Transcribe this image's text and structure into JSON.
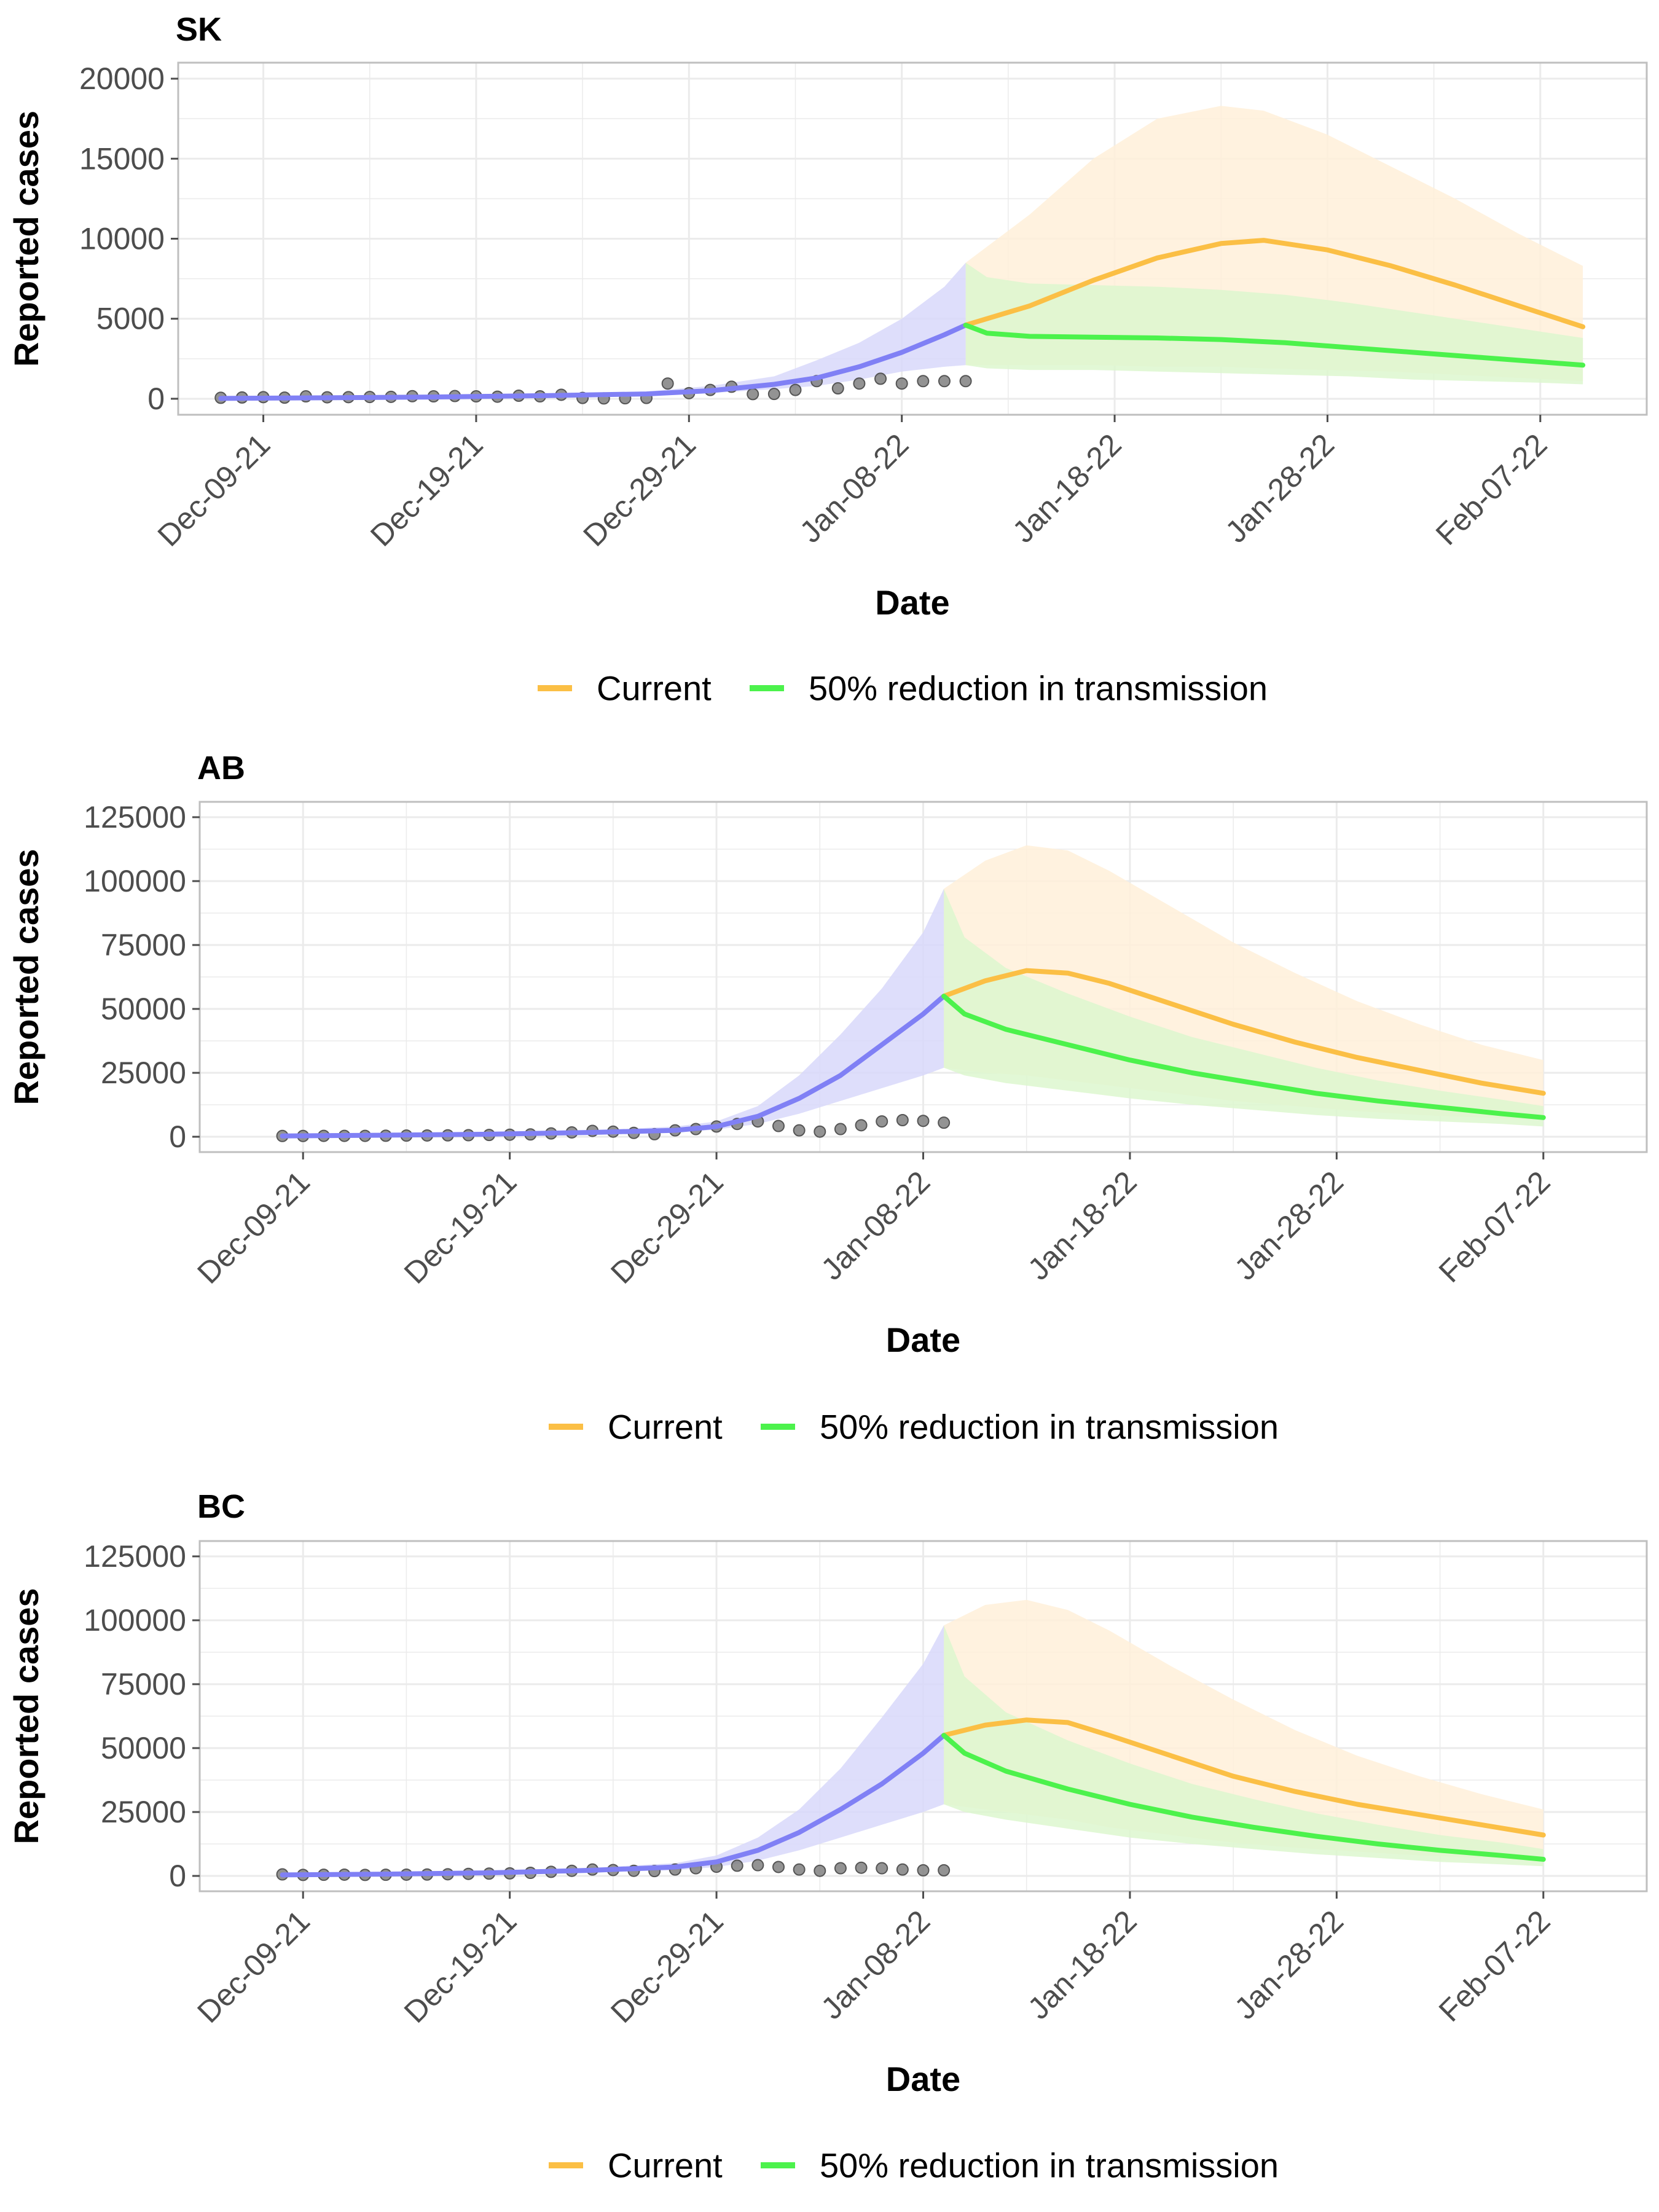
{
  "colors": {
    "current": "#FBBF45",
    "reduction": "#4CF24C",
    "fit": "#8080F5",
    "fit_band": "#D8D8FA",
    "current_band": "#FFF0D9",
    "reduction_band": "#DDF7CF",
    "points": "#808080",
    "grid": "#EBEBEB"
  },
  "chart_data": [
    {
      "type": "line",
      "title": "SK",
      "xlabel": "Date",
      "ylabel": "Reported cases",
      "xlim": [
        "2021-12-05",
        "2022-02-12"
      ],
      "ylim": [
        -1000,
        21000
      ],
      "x_ticks": [
        "Dec-09-21",
        "Dec-19-21",
        "Dec-29-21",
        "Jan-08-22",
        "Jan-18-22",
        "Jan-28-22",
        "Feb-07-22"
      ],
      "y_ticks": [
        "0",
        "5000",
        "10000",
        "15000",
        "20000"
      ],
      "legend": [
        "Current",
        "50% reduction in transmission"
      ],
      "legend_position": "bottom",
      "observed": {
        "x": [
          "2021-12-07",
          "2021-12-08",
          "2021-12-09",
          "2021-12-10",
          "2021-12-11",
          "2021-12-12",
          "2021-12-13",
          "2021-12-14",
          "2021-12-15",
          "2021-12-16",
          "2021-12-17",
          "2021-12-18",
          "2021-12-19",
          "2021-12-20",
          "2021-12-21",
          "2021-12-22",
          "2021-12-23",
          "2021-12-24",
          "2021-12-25",
          "2021-12-26",
          "2021-12-27",
          "2021-12-28",
          "2021-12-29",
          "2021-12-30",
          "2021-12-31",
          "2022-01-01",
          "2022-01-02",
          "2022-01-03",
          "2022-01-04",
          "2022-01-05",
          "2022-01-06",
          "2022-01-07",
          "2022-01-08",
          "2022-01-09",
          "2022-01-10",
          "2022-01-11"
        ],
        "y": [
          60,
          80,
          100,
          70,
          150,
          90,
          100,
          110,
          120,
          160,
          150,
          170,
          150,
          130,
          190,
          150,
          250,
          50,
          20,
          30,
          50,
          950,
          350,
          550,
          750,
          290,
          300,
          550,
          1100,
          650,
          950,
          1250,
          950,
          1100,
          1100,
          1100
        ]
      },
      "fitted": {
        "x": [
          "2021-12-07",
          "2021-12-12",
          "2021-12-17",
          "2021-12-22",
          "2021-12-27",
          "2021-12-30",
          "2022-01-02",
          "2022-01-04",
          "2022-01-06",
          "2022-01-08",
          "2022-01-10",
          "2022-01-11"
        ],
        "y": [
          20,
          60,
          110,
          190,
          300,
          500,
          900,
          1300,
          2000,
          2900,
          4000,
          4600
        ],
        "lower": [
          10,
          40,
          80,
          130,
          200,
          350,
          600,
          800,
          1200,
          1700,
          2000,
          2100
        ],
        "upper": [
          60,
          100,
          170,
          300,
          450,
          800,
          1400,
          2400,
          3500,
          5000,
          7000,
          8500
        ]
      },
      "series": [
        {
          "name": "Current",
          "x": [
            "2022-01-11",
            "2022-01-14",
            "2022-01-17",
            "2022-01-20",
            "2022-01-23",
            "2022-01-25",
            "2022-01-28",
            "2022-01-31",
            "2022-02-03",
            "2022-02-06",
            "2022-02-09"
          ],
          "values": [
            4600,
            5800,
            7400,
            8800,
            9700,
            9900,
            9300,
            8300,
            7100,
            5800,
            4500
          ],
          "lower": [
            2100,
            2100,
            2100,
            2000,
            2000,
            1900,
            1800,
            1700,
            1500,
            1300,
            1100
          ],
          "upper": [
            8500,
            11500,
            15000,
            17500,
            18300,
            18000,
            16500,
            14500,
            12500,
            10300,
            8300
          ]
        },
        {
          "name": "50% reduction in transmission",
          "x": [
            "2022-01-11",
            "2022-01-12",
            "2022-01-14",
            "2022-01-17",
            "2022-01-20",
            "2022-01-23",
            "2022-01-26",
            "2022-01-29",
            "2022-02-01",
            "2022-02-04",
            "2022-02-07",
            "2022-02-09"
          ],
          "values": [
            4600,
            4100,
            3900,
            3850,
            3800,
            3700,
            3500,
            3200,
            2900,
            2600,
            2300,
            2100
          ],
          "lower": [
            2100,
            1900,
            1800,
            1800,
            1700,
            1600,
            1500,
            1400,
            1200,
            1100,
            1000,
            900
          ],
          "upper": [
            8500,
            7600,
            7200,
            7100,
            7000,
            6800,
            6500,
            6000,
            5400,
            4800,
            4200,
            3800
          ]
        }
      ]
    },
    {
      "type": "line",
      "title": "AB",
      "xlabel": "Date",
      "ylabel": "Reported cases",
      "xlim": [
        "2021-12-04",
        "2022-02-12"
      ],
      "ylim": [
        -6000,
        131000
      ],
      "x_ticks": [
        "Dec-09-21",
        "Dec-19-21",
        "Dec-29-21",
        "Jan-08-22",
        "Jan-18-22",
        "Jan-28-22",
        "Feb-07-22"
      ],
      "y_ticks": [
        "0",
        "25000",
        "50000",
        "75000",
        "100000",
        "125000"
      ],
      "legend": [
        "Current",
        "50% reduction in transmission"
      ],
      "legend_position": "bottom",
      "observed": {
        "x": [
          "2021-12-08",
          "2021-12-09",
          "2021-12-10",
          "2021-12-11",
          "2021-12-12",
          "2021-12-13",
          "2021-12-14",
          "2021-12-15",
          "2021-12-16",
          "2021-12-17",
          "2021-12-18",
          "2021-12-19",
          "2021-12-20",
          "2021-12-21",
          "2021-12-22",
          "2021-12-23",
          "2021-12-24",
          "2021-12-25",
          "2021-12-26",
          "2021-12-27",
          "2021-12-28",
          "2021-12-29",
          "2021-12-30",
          "2021-12-31",
          "2022-01-01",
          "2022-01-02",
          "2022-01-03",
          "2022-01-04",
          "2022-01-05",
          "2022-01-06",
          "2022-01-07",
          "2022-01-08",
          "2022-01-09"
        ],
        "y": [
          300,
          300,
          350,
          350,
          350,
          400,
          450,
          500,
          550,
          600,
          700,
          800,
          900,
          1300,
          1700,
          2300,
          2000,
          1500,
          1000,
          2500,
          3000,
          4000,
          5000,
          6000,
          4200,
          2500,
          2000,
          3000,
          4500,
          6000,
          6500,
          6200,
          5500
        ]
      },
      "fitted": {
        "x": [
          "2021-12-08",
          "2021-12-13",
          "2021-12-18",
          "2021-12-23",
          "2021-12-27",
          "2021-12-29",
          "2021-12-31",
          "2022-01-02",
          "2022-01-04",
          "2022-01-06",
          "2022-01-08",
          "2022-01-09"
        ],
        "y": [
          300,
          600,
          1000,
          1700,
          2500,
          4000,
          8000,
          15000,
          24000,
          36000,
          48000,
          55000
        ],
        "lower": [
          200,
          400,
          700,
          1200,
          1700,
          2800,
          5000,
          9000,
          14000,
          19000,
          24000,
          27000
        ],
        "upper": [
          500,
          900,
          1500,
          2500,
          4000,
          6000,
          12000,
          24000,
          40000,
          58000,
          80000,
          97000
        ]
      },
      "series": [
        {
          "name": "Current",
          "x": [
            "2022-01-09",
            "2022-01-11",
            "2022-01-13",
            "2022-01-15",
            "2022-01-17",
            "2022-01-20",
            "2022-01-23",
            "2022-01-26",
            "2022-01-29",
            "2022-02-01",
            "2022-02-04",
            "2022-02-07"
          ],
          "values": [
            55000,
            61000,
            65000,
            64000,
            60000,
            52000,
            44000,
            37000,
            31000,
            26000,
            21000,
            17000
          ],
          "lower": [
            27000,
            25000,
            24000,
            22000,
            20000,
            17000,
            14000,
            12000,
            10000,
            8500,
            7500,
            6500
          ],
          "upper": [
            97000,
            108000,
            114000,
            112000,
            104000,
            90000,
            76000,
            64000,
            53000,
            44000,
            36000,
            30000
          ]
        },
        {
          "name": "50% reduction in transmission",
          "x": [
            "2022-01-09",
            "2022-01-10",
            "2022-01-12",
            "2022-01-15",
            "2022-01-18",
            "2022-01-21",
            "2022-01-24",
            "2022-01-27",
            "2022-01-30",
            "2022-02-02",
            "2022-02-05",
            "2022-02-07"
          ],
          "values": [
            55000,
            48000,
            42000,
            36000,
            30000,
            25000,
            21000,
            17000,
            14000,
            11500,
            9000,
            7500
          ],
          "lower": [
            27000,
            24000,
            21000,
            18000,
            15000,
            12500,
            10500,
            8500,
            7000,
            6000,
            5000,
            4000
          ],
          "upper": [
            97000,
            78000,
            66000,
            56000,
            47000,
            39000,
            33000,
            27000,
            22000,
            18000,
            14500,
            12000
          ]
        }
      ]
    },
    {
      "type": "line",
      "title": "BC",
      "xlabel": "Date",
      "ylabel": "Reported cases",
      "xlim": [
        "2021-12-04",
        "2022-02-12"
      ],
      "ylim": [
        -6000,
        131000
      ],
      "x_ticks": [
        "Dec-09-21",
        "Dec-19-21",
        "Dec-29-21",
        "Jan-08-22",
        "Jan-18-22",
        "Jan-28-22",
        "Feb-07-22"
      ],
      "y_ticks": [
        "0",
        "25000",
        "50000",
        "75000",
        "100000",
        "125000"
      ],
      "legend": [
        "Current",
        "50% reduction in transmission"
      ],
      "legend_position": "bottom",
      "observed": {
        "x": [
          "2021-12-08",
          "2021-12-09",
          "2021-12-10",
          "2021-12-11",
          "2021-12-12",
          "2021-12-13",
          "2021-12-14",
          "2021-12-15",
          "2021-12-16",
          "2021-12-17",
          "2021-12-18",
          "2021-12-19",
          "2021-12-20",
          "2021-12-21",
          "2021-12-22",
          "2021-12-23",
          "2021-12-24",
          "2021-12-25",
          "2021-12-26",
          "2021-12-27",
          "2021-12-28",
          "2021-12-29",
          "2021-12-30",
          "2021-12-31",
          "2022-01-01",
          "2022-01-02",
          "2022-01-03",
          "2022-01-04",
          "2022-01-05",
          "2022-01-06",
          "2022-01-07",
          "2022-01-08",
          "2022-01-09"
        ],
        "y": [
          600,
          400,
          450,
          500,
          400,
          450,
          500,
          550,
          650,
          800,
          900,
          1000,
          1200,
          1600,
          2000,
          2500,
          2300,
          2000,
          1900,
          2500,
          3000,
          3600,
          4000,
          4200,
          3500,
          2500,
          2000,
          3000,
          3200,
          3000,
          2500,
          2200,
          2200
        ]
      },
      "fitted": {
        "x": [
          "2021-12-08",
          "2021-12-13",
          "2021-12-18",
          "2021-12-23",
          "2021-12-27",
          "2021-12-29",
          "2021-12-31",
          "2022-01-02",
          "2022-01-04",
          "2022-01-06",
          "2022-01-08",
          "2022-01-09"
        ],
        "y": [
          400,
          700,
          1200,
          2200,
          3500,
          5500,
          10000,
          17000,
          26000,
          36000,
          48000,
          55000
        ],
        "lower": [
          300,
          500,
          800,
          1500,
          2200,
          3500,
          6000,
          10000,
          15000,
          20000,
          25000,
          28000
        ],
        "upper": [
          600,
          1000,
          1800,
          3200,
          5000,
          8000,
          15000,
          26000,
          42000,
          62000,
          83000,
          98000
        ]
      },
      "series": [
        {
          "name": "Current",
          "x": [
            "2022-01-09",
            "2022-01-11",
            "2022-01-13",
            "2022-01-15",
            "2022-01-17",
            "2022-01-20",
            "2022-01-23",
            "2022-01-26",
            "2022-01-29",
            "2022-02-01",
            "2022-02-04",
            "2022-02-07"
          ],
          "values": [
            55000,
            59000,
            61000,
            60000,
            55000,
            47000,
            39000,
            33000,
            28000,
            24000,
            20000,
            16000
          ],
          "lower": [
            28000,
            26000,
            24000,
            22000,
            19000,
            16000,
            13000,
            11000,
            9500,
            8000,
            7000,
            6000
          ],
          "upper": [
            98000,
            106000,
            108000,
            104000,
            96000,
            82000,
            69000,
            57000,
            47000,
            39000,
            32000,
            26000
          ]
        },
        {
          "name": "50% reduction in transmission",
          "x": [
            "2022-01-09",
            "2022-01-10",
            "2022-01-12",
            "2022-01-15",
            "2022-01-18",
            "2022-01-21",
            "2022-01-24",
            "2022-01-27",
            "2022-01-30",
            "2022-02-02",
            "2022-02-05",
            "2022-02-07"
          ],
          "values": [
            55000,
            48000,
            41000,
            34000,
            28000,
            23000,
            19000,
            15500,
            12500,
            10000,
            8000,
            6500
          ],
          "lower": [
            28000,
            25000,
            22000,
            18500,
            15000,
            12500,
            10500,
            8500,
            7000,
            5500,
            4500,
            3800
          ],
          "upper": [
            98000,
            78000,
            64000,
            53000,
            44000,
            36000,
            30000,
            24500,
            20000,
            16000,
            13000,
            10500
          ]
        }
      ]
    }
  ]
}
